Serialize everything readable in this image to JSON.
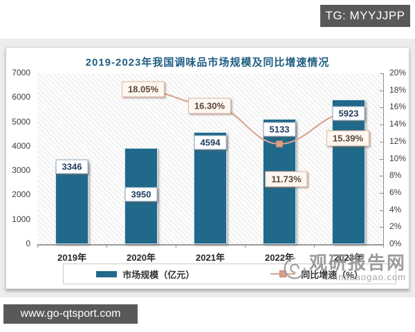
{
  "page": {
    "tg_badge": "TG: MYYJJPP",
    "url_badge": "www.go-qtsport.com"
  },
  "chart": {
    "title": "2019-2023年我国调味品市场规模及同比增速情况",
    "legend": [
      {
        "label": "市场规模（亿元）"
      },
      {
        "label": "同比增速（%）"
      }
    ]
  },
  "watermark": {
    "logo": "swirl-eye-logo",
    "name": "观研报告网",
    "domain": "chinabaogao.com"
  },
  "colors": {
    "bar": "#20698a",
    "bar_border": "#cfe3ee",
    "line": "#dba493",
    "marker_fill": "#dd9e89",
    "marker_border": "#bf8570",
    "title_text": "#1e5f82",
    "value_label_text": "#1f3b5c",
    "pct_label_text": "#5b4437",
    "pct_label_bg": "#fdf7f0",
    "pct_label_border": "#dcb29e",
    "badge_bg": "#595959",
    "watermark_gray": "#8f8f8f"
  },
  "chart_data": {
    "type": "bar",
    "title": "2019-2023年我国调味品市场规模及同比增速情况",
    "categories": [
      "2019年",
      "2020年",
      "2021年",
      "2022年",
      "2023年"
    ],
    "series": [
      {
        "name": "市场规模（亿元）",
        "type": "bar",
        "axis": "left",
        "values": [
          3346,
          3950,
          4594,
          5133,
          5923
        ]
      },
      {
        "name": "同比增速（%）",
        "type": "line",
        "axis": "right",
        "values": [
          null,
          18.05,
          16.3,
          11.73,
          15.39
        ]
      }
    ],
    "bar_labels": [
      "3346",
      "3950",
      "4594",
      "5133",
      "5923"
    ],
    "line_labels": [
      "18.05%",
      "16.30%",
      "11.73%",
      "15.39%"
    ],
    "left_axis": {
      "min": 0,
      "max": 7000,
      "step": 1000,
      "ticks": [
        "7000",
        "6000",
        "5000",
        "4000",
        "3000",
        "2000",
        "1000",
        "0"
      ]
    },
    "right_axis": {
      "min": 0,
      "max": 20,
      "step": 2,
      "ticks": [
        "20%",
        "18%",
        "16%",
        "14%",
        "12%",
        "10%",
        "8%",
        "6%",
        "4%",
        "2%",
        "0%"
      ]
    },
    "legend_position": "bottom",
    "grid": false,
    "plot_background": "diagonal-hatch"
  }
}
